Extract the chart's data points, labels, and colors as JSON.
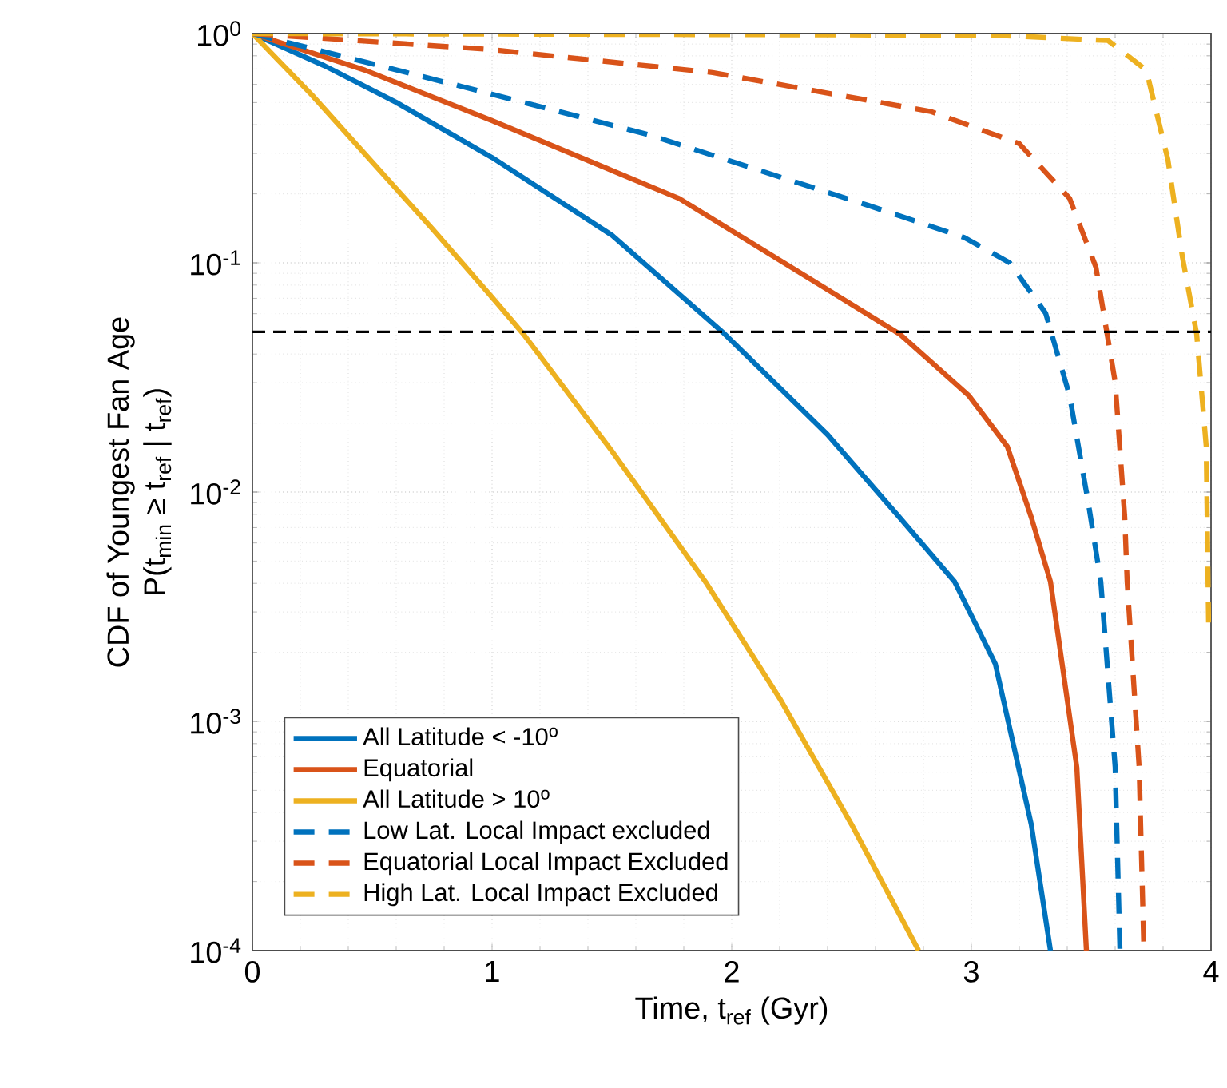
{
  "chart_data": {
    "type": "line",
    "xlabel": "Time, t$_{ref}$ (Gyr)",
    "ylabel": [
      "CDF of Youngest Fan Age",
      "P(t$_{min}$ ≥ t$_{ref}$ | t$_{ref}$)"
    ],
    "xlim": [
      0,
      4
    ],
    "ylim": [
      0.0001,
      1
    ],
    "xticks": [
      0,
      1,
      2,
      3,
      4
    ],
    "yticks": [
      {
        "value": 0.0001,
        "label": "10$^{-4}$"
      },
      {
        "value": 0.001,
        "label": "10$^{-3}$"
      },
      {
        "value": 0.01,
        "label": "10$^{-2}$"
      },
      {
        "value": 0.1,
        "label": "10$^{-1}$"
      },
      {
        "value": 1,
        "label": "10$^{0}$"
      }
    ],
    "log": "y",
    "grid": true,
    "legend": "bottom left",
    "marker": "none",
    "ref_lines": [
      {
        "axis": "y",
        "value": 0.05,
        "color": "#000000",
        "line_style": "dashed"
      }
    ],
    "series": [
      {
        "name": "All Latitude < -10$^{o}$",
        "color": "#0072bd",
        "line_style": "solid",
        "x": [
          0,
          0.3,
          0.6,
          1.0,
          1.5,
          1.97,
          2.4,
          2.7,
          2.93,
          3.1,
          3.25,
          3.33
        ],
        "values": [
          1,
          0.724,
          0.501,
          0.288,
          0.132,
          0.049,
          0.0178,
          0.00776,
          0.00407,
          0.00178,
          0.000355,
          0.0001
        ]
      },
      {
        "name": "Equatorial",
        "color": "#d95319",
        "line_style": "solid",
        "x": [
          0,
          0.47,
          1.0,
          1.78,
          2.7,
          2.99,
          3.15,
          3.25,
          3.33,
          3.44,
          3.48
        ],
        "values": [
          1,
          0.692,
          0.417,
          0.191,
          0.049,
          0.0263,
          0.0158,
          0.00776,
          0.00407,
          0.00063,
          0.0001
        ]
      },
      {
        "name": "All Latitude > 10$^{o}$",
        "color": "#edb120",
        "line_style": "solid",
        "x": [
          0,
          0.25,
          0.5,
          0.75,
          1.0,
          1.13,
          1.5,
          1.89,
          2.2,
          2.5,
          2.78
        ],
        "values": [
          1,
          0.537,
          0.275,
          0.141,
          0.0708,
          0.049,
          0.0151,
          0.00407,
          0.00126,
          0.000355,
          0.0001
        ]
      },
      {
        "name": "Low Lat. Local Impact excluded",
        "color": "#0072bd",
        "line_style": "dashed",
        "x": [
          0,
          0.87,
          1.65,
          2.57,
          2.97,
          3.16,
          3.31,
          3.41,
          3.49,
          3.54,
          3.6,
          3.62
        ],
        "values": [
          1,
          0.589,
          0.363,
          0.178,
          0.129,
          0.1,
          0.0603,
          0.0263,
          0.0087,
          0.00407,
          0.00063,
          0.0001
        ]
      },
      {
        "name": "Equatorial Local Impact Excluded",
        "color": "#d95319",
        "line_style": "dashed",
        "x": [
          0,
          1.0,
          1.92,
          2.83,
          3.2,
          3.41,
          3.52,
          3.6,
          3.64,
          3.65,
          3.7,
          3.72
        ],
        "values": [
          1,
          0.851,
          0.676,
          0.457,
          0.331,
          0.191,
          0.0955,
          0.0302,
          0.00776,
          0.00407,
          0.00063,
          0.0001
        ]
      },
      {
        "name": "High Lat. Local Impact Excluded",
        "color": "#edb120",
        "line_style": "dashed",
        "x": [
          0,
          3.1,
          3.57,
          3.73,
          3.82,
          3.88,
          3.94,
          3.98,
          3.99
        ],
        "values": [
          1,
          0.984,
          0.933,
          0.692,
          0.282,
          0.107,
          0.049,
          0.0158,
          0.00257
        ]
      }
    ]
  }
}
